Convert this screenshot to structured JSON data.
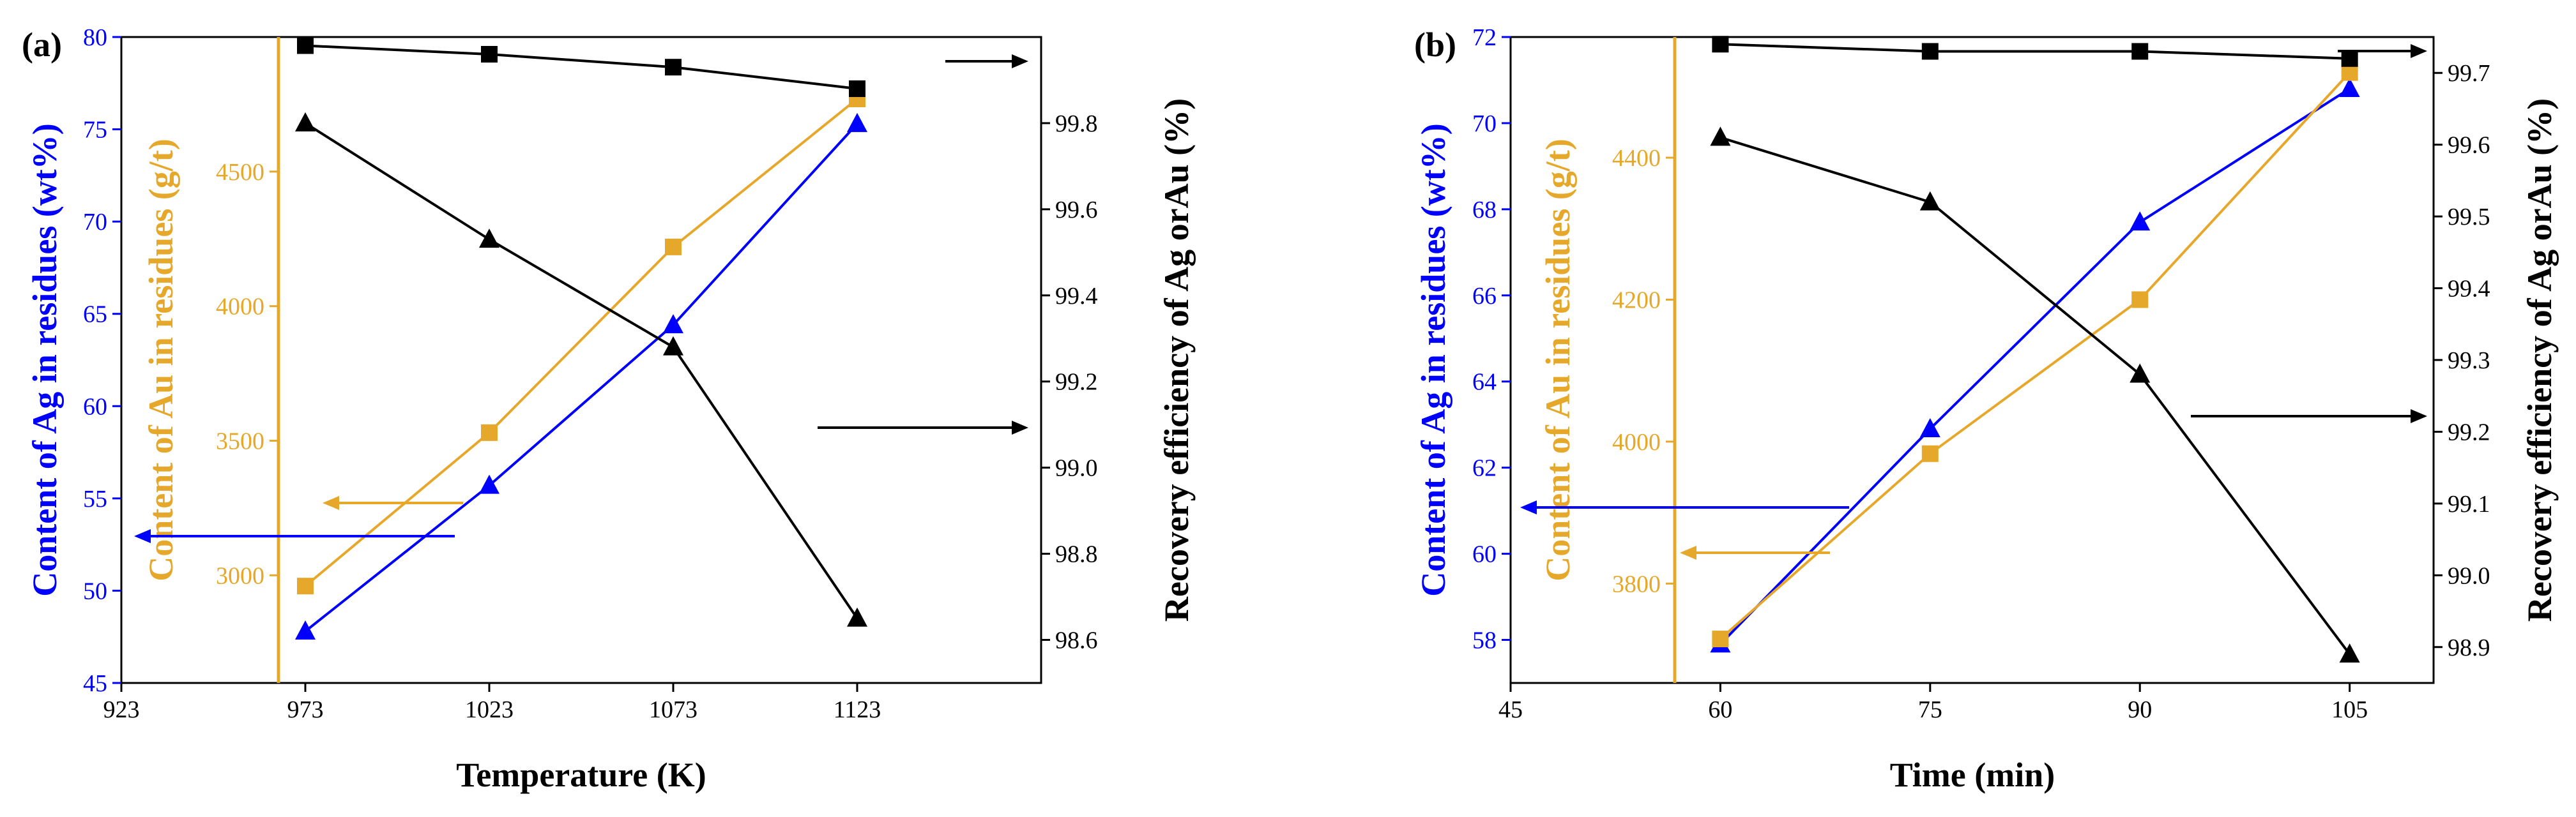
{
  "colors": {
    "ag": "#0000ff",
    "au": "#e6a82a",
    "recovery": "#000000"
  },
  "chart_data": [
    {
      "type": "line",
      "panel_label": "(a)",
      "xlabel": "Temperature (K)",
      "x_ticks": [
        "923",
        "973",
        "1023",
        "1073",
        "1123"
      ],
      "xlim": [
        923,
        1173
      ],
      "x": [
        973,
        1023,
        1073,
        1123
      ],
      "y_axes": [
        {
          "id": "ag",
          "label": "Content of Ag in residues (wt%)",
          "ticks": [
            "45",
            "50",
            "55",
            "60",
            "65",
            "70",
            "75",
            "80"
          ],
          "lim": [
            45,
            80
          ],
          "color": "#0000ff"
        },
        {
          "id": "au",
          "label": "Content of Au in residues (g/t)",
          "ticks": [
            "3000",
            "3500",
            "4000",
            "4500"
          ],
          "lim": [
            2600,
            5000
          ],
          "color": "#e6a82a"
        },
        {
          "id": "rec",
          "label": "Recovery efficiency of Ag orAu (%)",
          "ticks": [
            "98.6",
            "98.8",
            "99.0",
            "99.2",
            "99.4",
            "99.6",
            "99.8"
          ],
          "lim": [
            98.5,
            100.0
          ],
          "color": "#000000"
        }
      ],
      "series": [
        {
          "name": "Content of Ag",
          "axis": "ag",
          "marker": "triangle",
          "color": "#0000ff",
          "values": [
            47.8,
            55.7,
            64.4,
            75.3
          ]
        },
        {
          "name": "Content of Au",
          "axis": "au",
          "marker": "square",
          "color": "#e6a82a",
          "values": [
            2960,
            3530,
            4220,
            4770
          ]
        },
        {
          "name": "Recovery efficiency of Ag",
          "axis": "rec",
          "marker": "triangle",
          "color": "#000000",
          "values": [
            99.8,
            99.53,
            99.28,
            98.65
          ]
        },
        {
          "name": "Recovery efficiency of Au",
          "axis": "rec",
          "marker": "square",
          "color": "#000000",
          "values": [
            99.98,
            99.96,
            99.93,
            99.88
          ]
        }
      ]
    },
    {
      "type": "line",
      "panel_label": "(b)",
      "xlabel": "Time (min)",
      "x_ticks": [
        "45",
        "60",
        "75",
        "90",
        "105"
      ],
      "xlim": [
        45,
        111
      ],
      "x": [
        60,
        75,
        90,
        105
      ],
      "y_axes": [
        {
          "id": "ag",
          "label": "Content of Ag in residues (wt%)",
          "ticks": [
            "58",
            "60",
            "62",
            "64",
            "66",
            "68",
            "70",
            "72"
          ],
          "lim": [
            57,
            72
          ],
          "color": "#0000ff"
        },
        {
          "id": "au",
          "label": "Content of Au in residues (g/t)",
          "ticks": [
            "3800",
            "4000",
            "4200",
            "4400"
          ],
          "lim": [
            3660,
            4570
          ],
          "color": "#e6a82a"
        },
        {
          "id": "rec",
          "label": "Recovery efficiency of Ag orAu (%)",
          "ticks": [
            "98.9",
            "99.0",
            "99.1",
            "99.2",
            "99.3",
            "99.4",
            "99.5",
            "99.6",
            "99.7"
          ],
          "lim": [
            98.85,
            99.75
          ],
          "color": "#000000"
        }
      ],
      "series": [
        {
          "name": "Content of Ag",
          "axis": "ag",
          "marker": "triangle",
          "color": "#0000ff",
          "values": [
            57.9,
            62.9,
            67.7,
            70.8
          ]
        },
        {
          "name": "Content of Au",
          "axis": "au",
          "marker": "square",
          "color": "#e6a82a",
          "values": [
            3722,
            3983,
            4200,
            4520
          ]
        },
        {
          "name": "Recovery efficiency of Ag",
          "axis": "rec",
          "marker": "triangle",
          "color": "#000000",
          "values": [
            99.61,
            99.52,
            99.28,
            98.89
          ]
        },
        {
          "name": "Recovery efficiency of Au",
          "axis": "rec",
          "marker": "square",
          "color": "#000000",
          "values": [
            99.74,
            99.73,
            99.73,
            99.72
          ]
        }
      ]
    }
  ]
}
